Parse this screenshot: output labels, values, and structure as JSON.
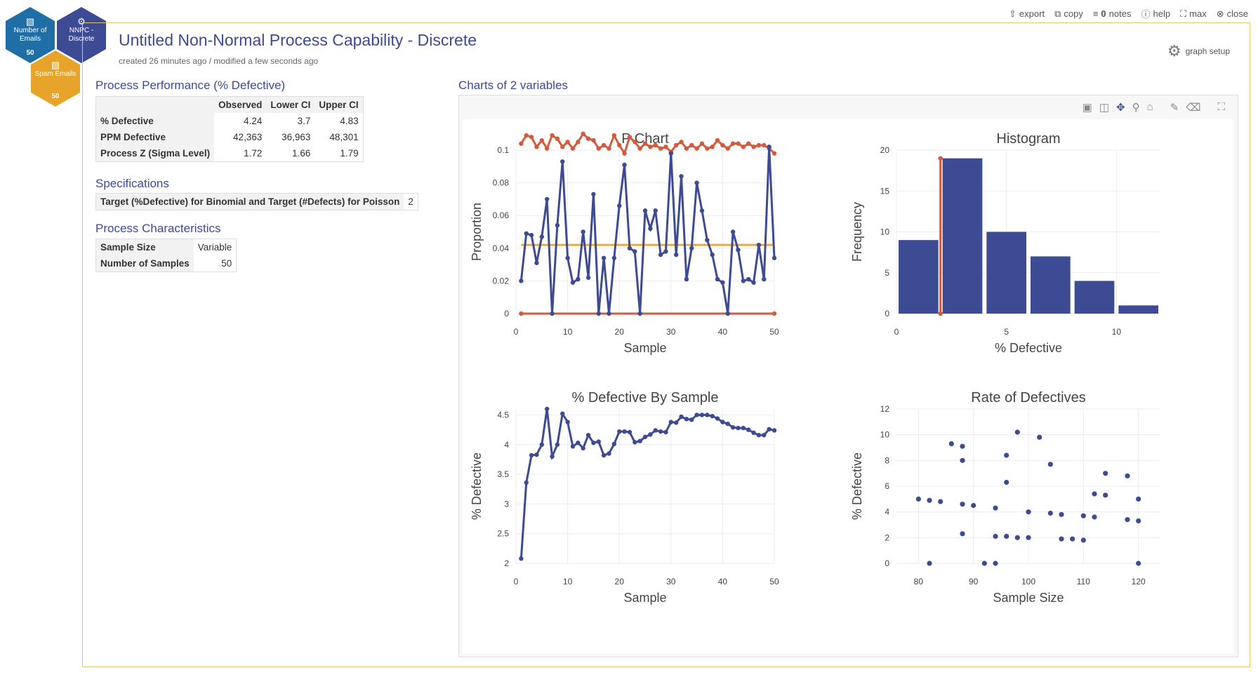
{
  "hexes": [
    {
      "label": "Number of Emails",
      "count": "50",
      "icon": "bar-chart-icon",
      "color": "#1f6fa6"
    },
    {
      "label": "NNPC - Discrete",
      "count": "",
      "icon": "wrench-icon",
      "color": "#3d4a94"
    },
    {
      "label": "Spam Emails",
      "count": "50",
      "icon": "bar-chart-icon",
      "color": "#e8a42a"
    }
  ],
  "toolbar": {
    "export": "export",
    "copy": "copy",
    "notes": "notes",
    "notes_count": "0",
    "help": "help",
    "max": "max",
    "close": "close"
  },
  "header": {
    "title": "Untitled Non-Normal Process Capability - Discrete",
    "subtitle": "created 26 minutes ago / modified a few seconds ago",
    "graph_setup": "graph setup"
  },
  "performance": {
    "heading": "Process Performance (% Defective)",
    "columns": [
      "Observed",
      "Lower CI",
      "Upper CI"
    ],
    "rows": [
      {
        "label": "% Defective",
        "values": [
          "4.24",
          "3.7",
          "4.83"
        ]
      },
      {
        "label": "PPM Defective",
        "values": [
          "42,363",
          "36,963",
          "48,301"
        ]
      },
      {
        "label": "Process Z (Sigma Level)",
        "values": [
          "1.72",
          "1.66",
          "1.79"
        ]
      }
    ]
  },
  "specifications": {
    "heading": "Specifications",
    "rows": [
      {
        "label": "Target (%Defective) for Binomial and Target (#Defects) for Poisson",
        "value": "2"
      }
    ]
  },
  "characteristics": {
    "heading": "Process Characteristics",
    "rows": [
      {
        "label": "Sample Size",
        "value": "Variable"
      },
      {
        "label": "Number of Samples",
        "value": "50"
      }
    ]
  },
  "charts_heading": "Charts of 2 variables",
  "colors": {
    "series": "#3d4a94",
    "limit": "#d45a3c",
    "center": "#e8a94a",
    "accent": "#3d4a94"
  },
  "chart_data": [
    {
      "type": "line",
      "title": "P Chart",
      "xlabel": "Sample",
      "ylabel": "Proportion",
      "xlim": [
        0,
        50
      ],
      "ylim": [
        0,
        0.1
      ],
      "xticks": [
        "0",
        "10",
        "20",
        "30",
        "40",
        "50"
      ],
      "yticks": [
        "0",
        "0.02",
        "0.04",
        "0.06",
        "0.08",
        "0.1"
      ],
      "x": [
        1,
        2,
        3,
        4,
        5,
        6,
        7,
        8,
        9,
        10,
        11,
        12,
        13,
        14,
        15,
        16,
        17,
        18,
        19,
        20,
        21,
        22,
        23,
        24,
        25,
        26,
        27,
        28,
        29,
        30,
        31,
        32,
        33,
        34,
        35,
        36,
        37,
        38,
        39,
        40,
        41,
        42,
        43,
        44,
        45,
        46,
        47,
        48,
        49,
        50
      ],
      "series": [
        {
          "values": [
            0.02,
            0.049,
            0.048,
            0.031,
            0.047,
            0.07,
            0,
            0.054,
            0.093,
            0.034,
            0.019,
            0.021,
            0.05,
            0.022,
            0.073,
            0,
            0.034,
            0,
            0.034,
            0.066,
            0.091,
            0.04,
            0.038,
            0,
            0.063,
            0.052,
            0.063,
            0.036,
            0.038,
            0.098,
            0.036,
            0.084,
            0.021,
            0.04,
            0.08,
            0.063,
            0.045,
            0.036,
            0.021,
            0.019,
            0,
            0.05,
            0.039,
            0.02,
            0.021,
            0.019,
            0.042,
            0.021,
            0.102,
            0.034
          ]
        },
        {
          "values": [
            0.104,
            0.109,
            0.108,
            0.102,
            0.106,
            0.101,
            0.109,
            0.107,
            0.102,
            0.105,
            0.101,
            0.105,
            0.11,
            0.107,
            0.106,
            0.101,
            0.103,
            0.101,
            0.109,
            0.103,
            0.098,
            0.108,
            0.105,
            0.101,
            0.104,
            0.102,
            0.103,
            0.101,
            0.102,
            0.099,
            0.103,
            0.105,
            0.101,
            0.103,
            0.101,
            0.104,
            0.101,
            0.102,
            0.106,
            0.103,
            0.101,
            0.104,
            0.104,
            0.102,
            0.104,
            0.102,
            0.103,
            0.103,
            0.101,
            0.098
          ]
        },
        {
          "values": [
            0.042,
            0.042,
            0.042,
            0.042,
            0.042,
            0.042,
            0.042,
            0.042,
            0.042,
            0.042,
            0.042,
            0.042,
            0.042,
            0.042,
            0.042,
            0.042,
            0.042,
            0.042,
            0.042,
            0.042,
            0.042,
            0.042,
            0.042,
            0.042,
            0.042,
            0.042,
            0.042,
            0.042,
            0.042,
            0.042,
            0.042,
            0.042,
            0.042,
            0.042,
            0.042,
            0.042,
            0.042,
            0.042,
            0.042,
            0.042,
            0.042,
            0.042,
            0.042,
            0.042,
            0.042,
            0.042,
            0.042,
            0.042,
            0.042,
            0.042
          ]
        },
        {
          "values": [
            0,
            0,
            0,
            0,
            0,
            0,
            0,
            0,
            0,
            0,
            0,
            0,
            0,
            0,
            0,
            0,
            0,
            0,
            0,
            0,
            0,
            0,
            0,
            0,
            0,
            0,
            0,
            0,
            0,
            0,
            0,
            0,
            0,
            0,
            0,
            0,
            0,
            0,
            0,
            0,
            0,
            0,
            0,
            0,
            0,
            0,
            0,
            0,
            0,
            0
          ]
        }
      ]
    },
    {
      "type": "bar",
      "title": "Histogram",
      "xlabel": "% Defective",
      "ylabel": "Frequency",
      "xlim": [
        0,
        12
      ],
      "ylim": [
        0,
        20
      ],
      "xticks": [
        "0",
        "5",
        "10"
      ],
      "yticks": [
        "0",
        "5",
        "10",
        "15",
        "20"
      ],
      "bin_starts": [
        0,
        2,
        4,
        6,
        8,
        10
      ],
      "bin_width": 2,
      "values": [
        9,
        19,
        10,
        7,
        4,
        1
      ],
      "target_line": 2
    },
    {
      "type": "line",
      "title": "% Defective By Sample",
      "xlabel": "Sample",
      "ylabel": "% Defective",
      "xlim": [
        0,
        50
      ],
      "ylim": [
        2,
        4.6
      ],
      "xticks": [
        "0",
        "10",
        "20",
        "30",
        "40",
        "50"
      ],
      "yticks": [
        "2",
        "2.5",
        "3",
        "3.5",
        "4",
        "4.5"
      ],
      "x": [
        1,
        2,
        3,
        4,
        5,
        6,
        7,
        8,
        9,
        10,
        11,
        12,
        13,
        14,
        15,
        16,
        17,
        18,
        19,
        20,
        21,
        22,
        23,
        24,
        25,
        26,
        27,
        28,
        29,
        30,
        31,
        32,
        33,
        34,
        35,
        36,
        37,
        38,
        39,
        40,
        41,
        42,
        43,
        44,
        45,
        46,
        47,
        48,
        49,
        50
      ],
      "values": [
        2.08,
        3.36,
        3.82,
        3.83,
        4.0,
        4.6,
        3.8,
        4.0,
        4.52,
        4.38,
        3.97,
        4.03,
        3.94,
        4.16,
        4.03,
        4.05,
        3.82,
        3.85,
        4.01,
        4.22,
        4.22,
        4.21,
        4.04,
        4.06,
        4.13,
        4.17,
        4.24,
        4.22,
        4.21,
        4.38,
        4.37,
        4.47,
        4.43,
        4.42,
        4.5,
        4.5,
        4.5,
        4.48,
        4.44,
        4.38,
        4.35,
        4.29,
        4.28,
        4.28,
        4.25,
        4.2,
        4.16,
        4.16,
        4.26,
        4.24
      ]
    },
    {
      "type": "scatter",
      "title": "Rate of Defectives",
      "xlabel": "Sample Size",
      "ylabel": "% Defective",
      "xlim": [
        76,
        124
      ],
      "ylim": [
        0,
        12
      ],
      "xticks": [
        "80",
        "90",
        "100",
        "110",
        "120"
      ],
      "yticks": [
        "0",
        "2",
        "4",
        "6",
        "8",
        "10",
        "12"
      ],
      "points": [
        [
          80,
          5
        ],
        [
          82,
          4.9
        ],
        [
          82,
          0
        ],
        [
          84,
          4.8
        ],
        [
          86,
          9.3
        ],
        [
          88,
          9.1
        ],
        [
          88,
          8
        ],
        [
          88,
          4.6
        ],
        [
          88,
          2.3
        ],
        [
          90,
          4.5
        ],
        [
          92,
          0
        ],
        [
          94,
          4.3
        ],
        [
          94,
          2.1
        ],
        [
          94,
          0
        ],
        [
          96,
          8.4
        ],
        [
          96,
          6.3
        ],
        [
          96,
          2.1
        ],
        [
          98,
          10.2
        ],
        [
          98,
          2
        ],
        [
          100,
          4
        ],
        [
          100,
          2
        ],
        [
          102,
          9.8
        ],
        [
          104,
          7.7
        ],
        [
          104,
          3.9
        ],
        [
          106,
          3.8
        ],
        [
          106,
          1.9
        ],
        [
          108,
          1.9
        ],
        [
          110,
          3.7
        ],
        [
          110,
          1.8
        ],
        [
          112,
          3.6
        ],
        [
          112,
          5.4
        ],
        [
          114,
          7
        ],
        [
          114,
          5.3
        ],
        [
          118,
          6.8
        ],
        [
          118,
          3.4
        ],
        [
          120,
          5
        ],
        [
          120,
          3.3
        ],
        [
          120,
          0
        ]
      ]
    }
  ]
}
